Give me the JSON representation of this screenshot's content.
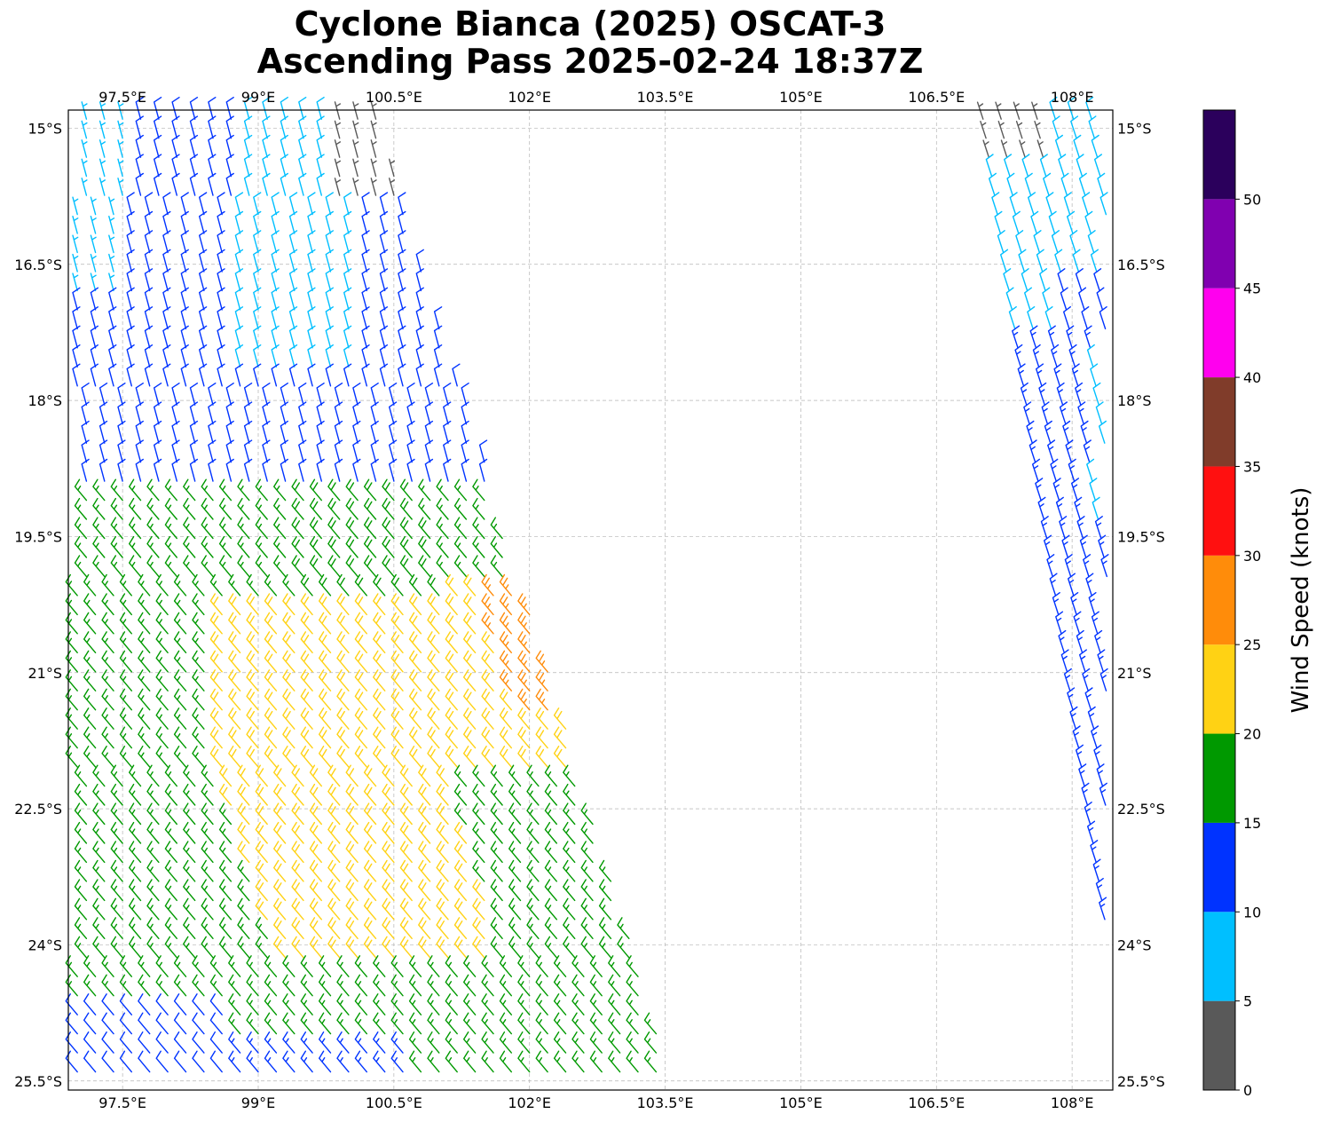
{
  "title": {
    "line1": "Cyclone Bianca (2025) OSCAT-3",
    "line2": "Ascending Pass 2025-02-24 18:37Z"
  },
  "axes": {
    "lon_range": [
      96.9,
      108.45
    ],
    "lat_range": [
      -14.8,
      -25.6
    ],
    "lon_ticks": [
      {
        "value": 97.5,
        "label": "97.5°E"
      },
      {
        "value": 99.0,
        "label": "99°E"
      },
      {
        "value": 100.5,
        "label": "100.5°E"
      },
      {
        "value": 102.0,
        "label": "102°E"
      },
      {
        "value": 103.5,
        "label": "103.5°E"
      },
      {
        "value": 105.0,
        "label": "105°E"
      },
      {
        "value": 106.5,
        "label": "106.5°E"
      },
      {
        "value": 108.0,
        "label": "108°E"
      }
    ],
    "lat_ticks": [
      {
        "value": -15.0,
        "label": "15°S"
      },
      {
        "value": -16.5,
        "label": "16.5°S"
      },
      {
        "value": -18.0,
        "label": "18°S"
      },
      {
        "value": -19.5,
        "label": "19.5°S"
      },
      {
        "value": -21.0,
        "label": "21°S"
      },
      {
        "value": -22.5,
        "label": "22.5°S"
      },
      {
        "value": -24.0,
        "label": "24°S"
      },
      {
        "value": -25.5,
        "label": "25.5°S"
      }
    ],
    "gridlines": true
  },
  "colorbar": {
    "label": "Wind Speed (knots)",
    "ticks": [
      "0",
      "5",
      "10",
      "15",
      "20",
      "25",
      "30",
      "35",
      "40",
      "45",
      "50"
    ],
    "bins": [
      {
        "min": 0,
        "max": 5,
        "color": "#595959"
      },
      {
        "min": 5,
        "max": 10,
        "color": "#00bfff"
      },
      {
        "min": 10,
        "max": 15,
        "color": "#0033ff"
      },
      {
        "min": 15,
        "max": 20,
        "color": "#009900"
      },
      {
        "min": 20,
        "max": 25,
        "color": "#ffd214"
      },
      {
        "min": 25,
        "max": 30,
        "color": "#ff8c0a"
      },
      {
        "min": 30,
        "max": 35,
        "color": "#ff1010"
      },
      {
        "min": 35,
        "max": 40,
        "color": "#803c2a"
      },
      {
        "min": 40,
        "max": 45,
        "color": "#ff00ee"
      },
      {
        "min": 45,
        "max": 50,
        "color": "#8000b0"
      },
      {
        "min": 50,
        "max": 55,
        "color": "#2b005c"
      }
    ]
  },
  "swaths": [
    {
      "name": "west-swath",
      "pass": "ascending"
    },
    {
      "name": "east-swath",
      "pass": "ascending"
    }
  ]
}
